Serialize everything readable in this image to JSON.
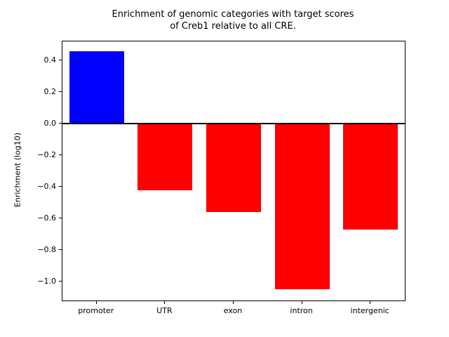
{
  "chart_data": {
    "type": "bar",
    "title": "Enrichment of genomic categories with target scores\nof Creb1 relative to all CRE.",
    "xlabel": "",
    "ylabel": "Enrichment (log10)",
    "categories": [
      "promoter",
      "UTR",
      "exon",
      "intron",
      "intergenic"
    ],
    "values": [
      0.46,
      -0.42,
      -0.56,
      -1.05,
      -0.67
    ],
    "bar_colors": [
      "#0000ff",
      "#ff0000",
      "#ff0000",
      "#ff0000",
      "#ff0000"
    ],
    "ylim": [
      -1.12,
      0.52
    ],
    "yticks": [
      0.4,
      0.2,
      0.0,
      -0.2,
      -0.4,
      -0.6,
      -0.8,
      -1.0
    ],
    "zero_line_y": 0.0,
    "grid": false,
    "legend": "none",
    "background": "#ffffff",
    "axis_color": "#000000"
  }
}
